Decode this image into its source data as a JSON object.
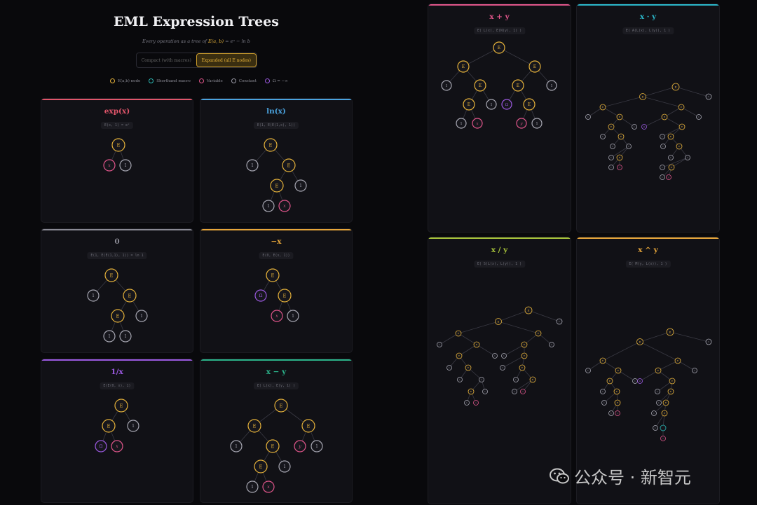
{
  "header": {
    "title": "EML Expression Trees",
    "subtitle_prefix": "Every operation as a tree of",
    "subtitle_formula": "E(a, b)",
    "subtitle_suffix": " = eᵃ − ln b",
    "toggle_compact": "Compact (with macros)",
    "toggle_expanded": "Expanded (all E nodes)"
  },
  "legend": [
    {
      "label": "E(a,b) node",
      "color": "#e7b33a"
    },
    {
      "label": "Shorthand macro",
      "color": "#2bb7b3"
    },
    {
      "label": "Variable",
      "color": "#e0558a"
    },
    {
      "label": "Constant",
      "color": "#9a9aa6"
    },
    {
      "label": "Ω = −∞",
      "color": "#9b59e0"
    }
  ],
  "palette": {
    "E": "#e7b33a",
    "x": "#e0558a",
    "y": "#e0558a",
    "1": "#a7a7b2",
    "0": "#9b59e0",
    "M": "#2bb7b3"
  },
  "cards": [
    {
      "title": "exp(x)",
      "formula": "E(x, 1) = eˣ",
      "accent": "#e0556a"
    },
    {
      "title": "ln(x)",
      "formula": "E(1, E(E(1,x), 1))",
      "accent": "#4aa3df"
    },
    {
      "title": "0",
      "formula": "E(1, E(E(1,1), 1)) = ln 1",
      "accent": "#8a8a94"
    },
    {
      "title": "−x",
      "formula": "E(0, E(x, 1))",
      "accent": "#e7a63a"
    },
    {
      "title": "1/x",
      "formula": "E(E(0, x), 1)",
      "accent": "#9b59e0"
    },
    {
      "title": "x − y",
      "formula": "E( L(x), E(y, 1) )",
      "accent": "#2bb38a"
    },
    {
      "title": "x + y",
      "formula": "E( L(x), E(N(y), 1) )",
      "accent": "#e0558a"
    },
    {
      "title": "x · y",
      "formula": "E( A(L(x), L(y)), 1 )",
      "accent": "#2bb7c9"
    },
    {
      "title": "x / y",
      "formula": "E( S(L(x), L(y)), 1 )",
      "accent": "#a8c43a"
    },
    {
      "title": "x ^ y",
      "formula": "E( M(y, L(x)), 1 )",
      "accent": "#e7a63a"
    }
  ],
  "watermark": {
    "text": "公众号 · 新智元"
  }
}
